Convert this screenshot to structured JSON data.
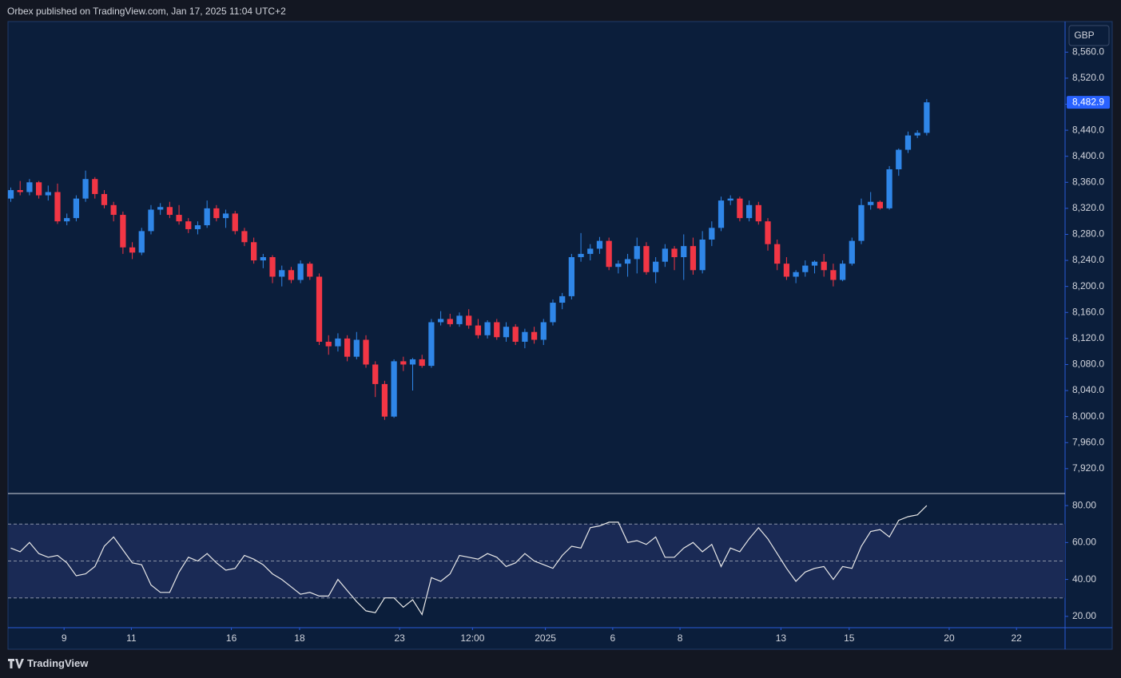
{
  "header": {
    "text": "Orbex published on TradingView.com, Jan 17, 2025 11:04 UTC+2"
  },
  "footer": {
    "brand": "TradingView"
  },
  "chart_data": [
    {
      "type": "candlestick",
      "currency": "GBP",
      "up_color": "#2f86e8",
      "down_color": "#f23645",
      "open": [
        8335,
        8348,
        8345,
        8360,
        8340,
        8345,
        8300,
        8305,
        8335,
        8365,
        8342,
        8325,
        8310,
        8260,
        8252,
        8285,
        8318,
        8322,
        8310,
        8300,
        8288,
        8294,
        8320,
        8305,
        8312,
        8285,
        8268,
        8240,
        8245,
        8215,
        8225,
        8210,
        8235,
        8215,
        8115,
        8108,
        8120,
        8092,
        8118,
        8080,
        8050,
        8000,
        8085,
        8080,
        8088,
        8078,
        8145,
        8150,
        8142,
        8155,
        8140,
        8125,
        8145,
        8122,
        8138,
        8115,
        8130,
        8118,
        8145,
        8175,
        8185,
        8245,
        8250,
        8258,
        8270,
        8230,
        8235,
        8242,
        8262,
        8222,
        8238,
        8258,
        8245,
        8262,
        8225,
        8272,
        8290,
        8332,
        8335,
        8305,
        8325,
        8300,
        8265,
        8235,
        8215,
        8222,
        8232,
        8238,
        8225,
        8210,
        8235,
        8270,
        8325,
        8330,
        8320,
        8380,
        8410,
        8432,
        8436
      ],
      "high": [
        8352,
        8362,
        8365,
        8362,
        8355,
        8358,
        8312,
        8340,
        8378,
        8368,
        8348,
        8330,
        8315,
        8268,
        8290,
        8325,
        8328,
        8330,
        8325,
        8305,
        8300,
        8332,
        8325,
        8318,
        8316,
        8290,
        8275,
        8250,
        8248,
        8232,
        8230,
        8240,
        8238,
        8220,
        8125,
        8128,
        8125,
        8130,
        8125,
        8085,
        8055,
        8088,
        8092,
        8090,
        8095,
        8150,
        8162,
        8158,
        8160,
        8165,
        8150,
        8148,
        8150,
        8145,
        8142,
        8135,
        8138,
        8150,
        8180,
        8190,
        8250,
        8282,
        8265,
        8276,
        8275,
        8240,
        8250,
        8275,
        8268,
        8245,
        8265,
        8262,
        8280,
        8275,
        8285,
        8300,
        8338,
        8340,
        8338,
        8332,
        8330,
        8305,
        8272,
        8245,
        8225,
        8240,
        8240,
        8250,
        8235,
        8240,
        8275,
        8335,
        8345,
        8332,
        8385,
        8412,
        8438,
        8440,
        8488
      ],
      "low": [
        8330,
        8340,
        8340,
        8335,
        8332,
        8296,
        8294,
        8300,
        8330,
        8335,
        8320,
        8300,
        8250,
        8242,
        8248,
        8280,
        8310,
        8305,
        8295,
        8282,
        8280,
        8290,
        8300,
        8290,
        8280,
        8262,
        8235,
        8228,
        8205,
        8200,
        8205,
        8205,
        8210,
        8110,
        8095,
        8100,
        8085,
        8088,
        8075,
        8030,
        7995,
        7998,
        8070,
        8040,
        8075,
        8075,
        8140,
        8138,
        8138,
        8135,
        8120,
        8120,
        8118,
        8115,
        8110,
        8105,
        8112,
        8110,
        8140,
        8165,
        8180,
        8238,
        8240,
        8250,
        8225,
        8220,
        8215,
        8220,
        8218,
        8205,
        8230,
        8225,
        8210,
        8218,
        8220,
        8262,
        8285,
        8325,
        8300,
        8300,
        8295,
        8255,
        8225,
        8210,
        8205,
        8215,
        8220,
        8215,
        8200,
        8208,
        8232,
        8265,
        8318,
        8318,
        8318,
        8370,
        8405,
        8428,
        8432
      ],
      "close": [
        8348,
        8345,
        8360,
        8340,
        8345,
        8300,
        8305,
        8335,
        8365,
        8342,
        8325,
        8310,
        8260,
        8252,
        8285,
        8318,
        8322,
        8310,
        8300,
        8288,
        8294,
        8320,
        8305,
        8312,
        8285,
        8268,
        8240,
        8245,
        8215,
        8225,
        8210,
        8235,
        8215,
        8115,
        8108,
        8120,
        8092,
        8118,
        8080,
        8050,
        8000,
        8085,
        8080,
        8088,
        8078,
        8145,
        8150,
        8142,
        8155,
        8140,
        8125,
        8145,
        8122,
        8138,
        8115,
        8130,
        8118,
        8145,
        8175,
        8185,
        8245,
        8250,
        8258,
        8270,
        8230,
        8235,
        8242,
        8262,
        8222,
        8238,
        8258,
        8245,
        8262,
        8225,
        8272,
        8290,
        8332,
        8335,
        8305,
        8325,
        8300,
        8265,
        8235,
        8215,
        8222,
        8232,
        8238,
        8225,
        8210,
        8235,
        8270,
        8325,
        8330,
        8320,
        8380,
        8410,
        8432,
        8436,
        8482.9
      ],
      "last_price": {
        "value": 8482.9,
        "label": "8,482.9"
      },
      "xlim": [
        -0.3,
        112.8
      ],
      "xticks": [
        {
          "value": 5.7,
          "label": "9"
        },
        {
          "value": 12.9,
          "label": "11"
        },
        {
          "value": 23.6,
          "label": "16"
        },
        {
          "value": 30.9,
          "label": "18"
        },
        {
          "value": 41.6,
          "label": "23"
        },
        {
          "value": 49.4,
          "label": "12:00"
        },
        {
          "value": 57.2,
          "label": "2025"
        },
        {
          "value": 64.4,
          "label": "6"
        },
        {
          "value": 71.6,
          "label": "8"
        },
        {
          "value": 82.4,
          "label": "13"
        },
        {
          "value": 89.7,
          "label": "15"
        },
        {
          "value": 100.4,
          "label": "20"
        },
        {
          "value": 107.6,
          "label": "22"
        }
      ],
      "ylim": [
        7883,
        8607
      ],
      "yticks": [
        {
          "value": 7920,
          "label": "7,920.0"
        },
        {
          "value": 7960,
          "label": "7,960.0"
        },
        {
          "value": 8000,
          "label": "8,000.0"
        },
        {
          "value": 8040,
          "label": "8,040.0"
        },
        {
          "value": 8080,
          "label": "8,080.0"
        },
        {
          "value": 8120,
          "label": "8,120.0"
        },
        {
          "value": 8160,
          "label": "8,160.0"
        },
        {
          "value": 8200,
          "label": "8,200.0"
        },
        {
          "value": 8240,
          "label": "8,240.0"
        },
        {
          "value": 8280,
          "label": "8,280.0"
        },
        {
          "value": 8320,
          "label": "8,320.0"
        },
        {
          "value": 8360,
          "label": "8,360.0"
        },
        {
          "value": 8400,
          "label": "8,400.0"
        },
        {
          "value": 8440,
          "label": "8,440.0"
        },
        {
          "value": 8480,
          "label": "8,480.0"
        },
        {
          "value": 8520,
          "label": "8,520.0"
        },
        {
          "value": 8560,
          "label": "8,560.0"
        }
      ]
    },
    {
      "type": "line",
      "color": "#e8e8e8",
      "band_color": "#1a2a55",
      "values": [
        57,
        55,
        60,
        54,
        52,
        53,
        49,
        42,
        43,
        47,
        58,
        63,
        56,
        49,
        48,
        37,
        33,
        33,
        44,
        52,
        50,
        54,
        49,
        45,
        46,
        53,
        51,
        48,
        43,
        40,
        36,
        32,
        33,
        31,
        31,
        40,
        34,
        28,
        23,
        22,
        30,
        30,
        25,
        29,
        21,
        41,
        39,
        43,
        53,
        52,
        51,
        54,
        52,
        47,
        49,
        54,
        50,
        48,
        46,
        53,
        58,
        57,
        68,
        69,
        71,
        71,
        60,
        61,
        59,
        63,
        52,
        52,
        57,
        60,
        55,
        59,
        47,
        57,
        55,
        62,
        68,
        62,
        54,
        46,
        39,
        44,
        46,
        47,
        40,
        47,
        46,
        58,
        66,
        67,
        63,
        72,
        74,
        75,
        80
      ],
      "levels": [
        70,
        50,
        30
      ],
      "ylim": [
        14.3,
        86.1
      ],
      "yticks": [
        {
          "value": 20,
          "label": "20.00"
        },
        {
          "value": 40,
          "label": "40.00"
        },
        {
          "value": 60,
          "label": "60.00"
        },
        {
          "value": 80,
          "label": "80.00"
        }
      ]
    }
  ]
}
